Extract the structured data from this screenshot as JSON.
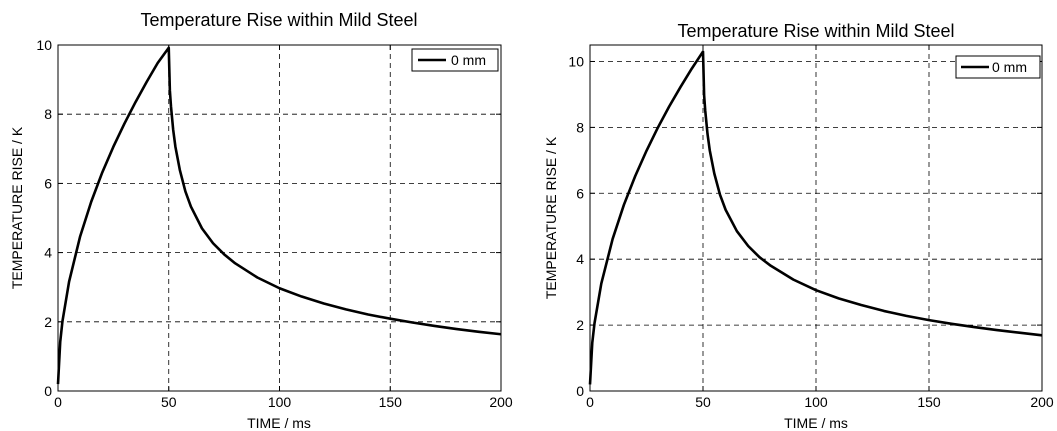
{
  "chart_data": [
    {
      "type": "line",
      "title": "Temperature Rise within Mild Steel",
      "xlabel": "TIME / ms",
      "ylabel": "TEMPERATURE RISE  / K",
      "xlim": [
        0,
        200
      ],
      "ylim": [
        0,
        10
      ],
      "xticks": [
        "0",
        "50",
        "100",
        "150",
        "200"
      ],
      "yticks": [
        "0",
        "2",
        "4",
        "6",
        "8",
        "10"
      ],
      "grid": true,
      "legend_position": "top-right",
      "series": [
        {
          "name": "0 mm",
          "color": "#000000",
          "x": [
            0,
            1,
            2,
            5,
            10,
            15,
            20,
            25,
            30,
            35,
            40,
            45,
            50,
            50.5,
            51,
            52,
            53,
            55,
            57.5,
            60,
            65,
            70,
            75,
            80,
            90,
            100,
            110,
            120,
            130,
            140,
            150,
            160,
            170,
            180,
            190,
            200
          ],
          "y": [
            0.2,
            1.42,
            2.01,
            3.16,
            4.47,
            5.47,
            6.32,
            7.06,
            7.73,
            8.35,
            8.93,
            9.48,
            9.92,
            8.69,
            8.23,
            7.55,
            7.06,
            6.39,
            5.77,
            5.33,
            4.7,
            4.27,
            3.95,
            3.69,
            3.28,
            2.97,
            2.73,
            2.53,
            2.36,
            2.21,
            2.09,
            1.98,
            1.88,
            1.79,
            1.71,
            1.64
          ]
        }
      ]
    },
    {
      "type": "line",
      "title": "Temperature Rise within Mild Steel",
      "xlabel": "TIME / ms",
      "ylabel": "TEMPERATURE RISE  / K",
      "xlim": [
        0,
        200
      ],
      "ylim": [
        0,
        10.5
      ],
      "xticks": [
        "0",
        "50",
        "100",
        "150",
        "200"
      ],
      "yticks": [
        "0",
        "2",
        "4",
        "6",
        "8",
        "10"
      ],
      "grid": true,
      "legend_position": "top-right",
      "series": [
        {
          "name": "0 mm",
          "color": "#000000",
          "x": [
            0,
            1,
            2,
            5,
            10,
            15,
            20,
            25,
            30,
            35,
            40,
            45,
            50,
            50.5,
            51,
            52,
            53,
            55,
            57.5,
            60,
            65,
            70,
            75,
            80,
            90,
            100,
            110,
            120,
            130,
            140,
            150,
            160,
            170,
            180,
            190,
            200
          ],
          "y": [
            0.2,
            1.46,
            2.06,
            3.26,
            4.61,
            5.65,
            6.52,
            7.29,
            7.99,
            8.63,
            9.22,
            9.78,
            10.3,
            8.97,
            8.5,
            7.8,
            7.3,
            6.6,
            5.96,
            5.5,
            4.85,
            4.4,
            4.06,
            3.8,
            3.38,
            3.06,
            2.81,
            2.61,
            2.43,
            2.28,
            2.15,
            2.04,
            1.94,
            1.85,
            1.77,
            1.69
          ]
        }
      ]
    }
  ]
}
